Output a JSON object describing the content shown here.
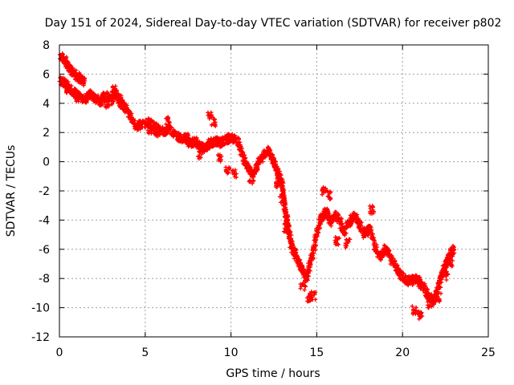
{
  "chart_data": {
    "type": "scatter",
    "title": "Day 151 of 2024, Sidereal Day-to-day VTEC variation (SDTVAR) for receiver p802",
    "xlabel": "GPS time / hours",
    "ylabel": "SDTVAR / TECUs",
    "xlim": [
      0,
      25
    ],
    "ylim": [
      -12,
      8
    ],
    "xticks": [
      0,
      5,
      10,
      15,
      20,
      25
    ],
    "yticks": [
      -12,
      -10,
      -8,
      -6,
      -4,
      -2,
      0,
      2,
      4,
      6,
      8
    ],
    "grid": true,
    "marker": "+",
    "series_color": "#ff0000",
    "series": [
      {
        "name": "SDTVAR",
        "trace": [
          [
            0.0,
            7.3
          ],
          [
            0.3,
            7.0
          ],
          [
            0.6,
            6.4
          ],
          [
            0.9,
            6.0
          ],
          [
            1.2,
            5.7
          ],
          [
            1.5,
            5.5
          ],
          [
            0.0,
            5.6
          ],
          [
            0.3,
            5.4
          ],
          [
            0.6,
            5.0
          ],
          [
            0.9,
            4.7
          ],
          [
            1.2,
            4.5
          ],
          [
            1.5,
            4.2
          ],
          [
            1.8,
            4.6
          ],
          [
            2.1,
            4.3
          ],
          [
            2.4,
            4.1
          ],
          [
            2.7,
            4.5
          ],
          [
            3.0,
            4.2
          ],
          [
            3.3,
            4.7
          ],
          [
            3.6,
            4.0
          ],
          [
            3.9,
            3.6
          ],
          [
            4.2,
            3.0
          ],
          [
            4.5,
            2.4
          ],
          [
            4.8,
            2.6
          ],
          [
            5.2,
            2.7
          ],
          [
            5.5,
            2.4
          ],
          [
            5.8,
            2.2
          ],
          [
            6.1,
            2.0
          ],
          [
            6.4,
            2.2
          ],
          [
            6.8,
            1.8
          ],
          [
            7.1,
            1.6
          ],
          [
            7.4,
            1.7
          ],
          [
            7.6,
            1.2
          ],
          [
            7.9,
            1.4
          ],
          [
            8.2,
            1.1
          ],
          [
            8.5,
            0.9
          ],
          [
            8.8,
            1.3
          ],
          [
            9.1,
            1.4
          ],
          [
            9.4,
            1.3
          ],
          [
            9.7,
            1.5
          ],
          [
            10.0,
            1.7
          ],
          [
            10.4,
            1.4
          ],
          [
            10.7,
            0.3
          ],
          [
            11.0,
            -0.5
          ],
          [
            11.3,
            -0.9
          ],
          [
            11.6,
            0.0
          ],
          [
            11.9,
            0.5
          ],
          [
            12.2,
            0.8
          ],
          [
            12.4,
            0.2
          ],
          [
            12.6,
            -0.3
          ],
          [
            12.8,
            -1.0
          ],
          [
            13.0,
            -1.6
          ],
          [
            13.1,
            -2.8
          ],
          [
            13.2,
            -3.6
          ],
          [
            13.3,
            -4.2
          ],
          [
            13.4,
            -4.9
          ],
          [
            13.5,
            -5.6
          ],
          [
            13.6,
            -6.0
          ],
          [
            13.8,
            -6.5
          ],
          [
            14.0,
            -7.0
          ],
          [
            14.2,
            -7.5
          ],
          [
            14.4,
            -8.0
          ],
          [
            14.6,
            -7.0
          ],
          [
            14.8,
            -6.2
          ],
          [
            15.0,
            -5.0
          ],
          [
            15.2,
            -4.0
          ],
          [
            15.4,
            -3.7
          ],
          [
            15.6,
            -3.4
          ],
          [
            15.8,
            -4.2
          ],
          [
            16.0,
            -3.6
          ],
          [
            16.3,
            -3.9
          ],
          [
            16.6,
            -4.8
          ],
          [
            16.9,
            -4.2
          ],
          [
            17.2,
            -3.6
          ],
          [
            17.5,
            -4.3
          ],
          [
            17.8,
            -5.0
          ],
          [
            18.1,
            -4.5
          ],
          [
            18.4,
            -5.9
          ],
          [
            18.7,
            -6.5
          ],
          [
            19.0,
            -6.0
          ],
          [
            19.3,
            -6.6
          ],
          [
            19.6,
            -7.2
          ],
          [
            19.9,
            -7.8
          ],
          [
            20.2,
            -8.1
          ],
          [
            20.5,
            -8.2
          ],
          [
            20.8,
            -8.0
          ],
          [
            21.0,
            -8.3
          ],
          [
            21.3,
            -8.7
          ],
          [
            21.5,
            -9.2
          ],
          [
            21.8,
            -9.6
          ],
          [
            22.0,
            -9.0
          ],
          [
            22.2,
            -8.2
          ],
          [
            22.4,
            -7.4
          ],
          [
            22.6,
            -6.8
          ],
          [
            22.8,
            -6.3
          ],
          [
            23.0,
            -6.0
          ]
        ],
        "clusters": [
          [
            0.5,
            5.0
          ],
          [
            1.0,
            4.4
          ],
          [
            2.6,
            4.5
          ],
          [
            2.8,
            4.0
          ],
          [
            3.2,
            4.9
          ],
          [
            3.5,
            4.3
          ],
          [
            5.3,
            2.2
          ],
          [
            5.6,
            2.0
          ],
          [
            6.3,
            2.8
          ],
          [
            8.8,
            3.2
          ],
          [
            9.0,
            2.7
          ],
          [
            8.2,
            0.5
          ],
          [
            9.3,
            0.2
          ],
          [
            9.8,
            -0.5
          ],
          [
            10.2,
            -0.8
          ],
          [
            11.2,
            -1.2
          ],
          [
            12.7,
            -1.5
          ],
          [
            13.0,
            -2.5
          ],
          [
            13.2,
            -4.5
          ],
          [
            14.2,
            -8.6
          ],
          [
            14.5,
            -9.3
          ],
          [
            14.8,
            -9.2
          ],
          [
            15.4,
            -2.0
          ],
          [
            15.7,
            -2.3
          ],
          [
            16.2,
            -5.4
          ],
          [
            16.8,
            -5.6
          ],
          [
            18.2,
            -3.3
          ],
          [
            20.7,
            -10.2
          ],
          [
            21.0,
            -10.5
          ],
          [
            21.6,
            -9.8
          ],
          [
            22.1,
            -9.3
          ],
          [
            22.5,
            -7.8
          ],
          [
            22.8,
            -6.9
          ]
        ]
      }
    ]
  }
}
